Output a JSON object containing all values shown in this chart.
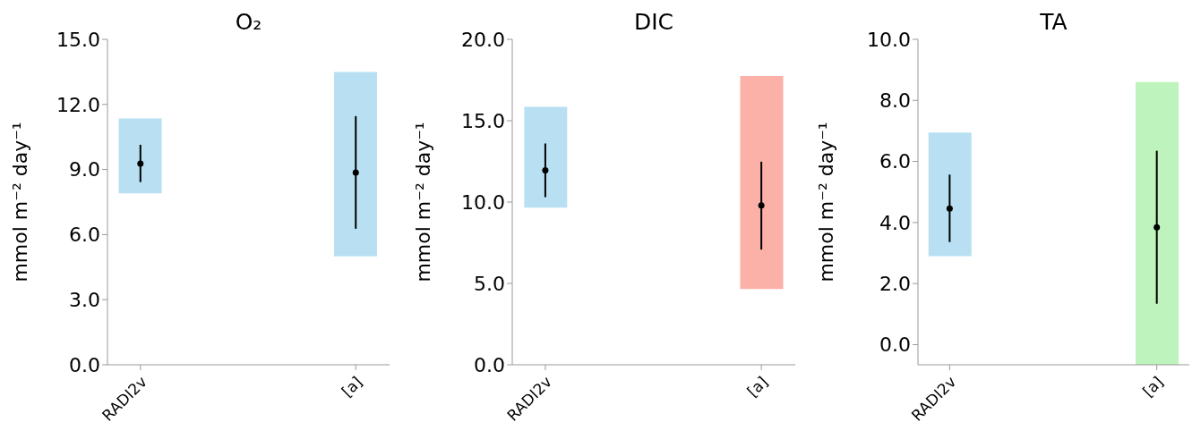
{
  "chart_data": [
    {
      "type": "bar",
      "title": "O₂",
      "ylabel": "mmol m⁻² day⁻¹",
      "categories": [
        "RADI2v",
        "[a]"
      ],
      "ylim": [
        0,
        15
      ],
      "yticks": [
        {
          "value": 0,
          "label": "0.0"
        },
        {
          "value": 3,
          "label": "3.0"
        },
        {
          "value": 6,
          "label": "6.0"
        },
        {
          "value": 9,
          "label": "9.0"
        },
        {
          "value": 12,
          "label": "12.0"
        },
        {
          "value": 15,
          "label": "15.0"
        }
      ],
      "series": [
        {
          "type": "bar",
          "colors": [
            "#b8e0f2",
            "#b8e0f2"
          ],
          "base": [
            7.9,
            5.0
          ],
          "values": [
            3.45,
            8.5
          ]
        },
        {
          "type": "scatter",
          "color": "#000000",
          "x": [
            "RADI2v",
            "[a]"
          ],
          "values": [
            9.27,
            8.86
          ],
          "errors": [
            [
              8.42,
              10.14
            ],
            [
              6.27,
              11.46
            ]
          ]
        }
      ]
    },
    {
      "type": "bar",
      "title": "DIC",
      "ylabel": "mmol m⁻² day⁻¹",
      "categories": [
        "RADI2v",
        "[a]"
      ],
      "ylim": [
        0,
        20
      ],
      "yticks": [
        {
          "value": 0,
          "label": "0.0"
        },
        {
          "value": 5,
          "label": "5.0"
        },
        {
          "value": 10,
          "label": "10.0"
        },
        {
          "value": 15,
          "label": "15.0"
        },
        {
          "value": 20,
          "label": "20.0"
        }
      ],
      "series": [
        {
          "type": "bar",
          "colors": [
            "#b8e0f2",
            "#fbb0a8"
          ],
          "base": [
            9.65,
            4.65
          ],
          "values": [
            6.2,
            13.1
          ]
        },
        {
          "type": "scatter",
          "color": "#000000",
          "x": [
            "RADI2v",
            "[a]"
          ],
          "values": [
            11.95,
            9.79
          ],
          "errors": [
            [
              10.3,
              13.6
            ],
            [
              7.08,
              12.48
            ]
          ]
        }
      ]
    },
    {
      "type": "bar",
      "title": "TA",
      "ylabel": "mmol m⁻² day⁻¹",
      "categories": [
        "RADI2v",
        "[a]"
      ],
      "ylim": [
        -0.66,
        10
      ],
      "yticks": [
        {
          "value": 0,
          "label": "0.0"
        },
        {
          "value": 2,
          "label": "2.0"
        },
        {
          "value": 4,
          "label": "4.0"
        },
        {
          "value": 6,
          "label": "6.0"
        },
        {
          "value": 8,
          "label": "8.0"
        },
        {
          "value": 10,
          "label": "10.0"
        }
      ],
      "series": [
        {
          "type": "bar",
          "colors": [
            "#b8e0f2",
            "#bff3bd"
          ],
          "base": [
            2.9,
            -0.66
          ],
          "values": [
            4.05,
            9.26
          ]
        },
        {
          "type": "scatter",
          "color": "#000000",
          "x": [
            "RADI2v",
            "[a]"
          ],
          "values": [
            4.46,
            3.84
          ],
          "errors": [
            [
              3.36,
              5.57
            ],
            [
              1.34,
              6.35
            ]
          ]
        }
      ]
    }
  ]
}
